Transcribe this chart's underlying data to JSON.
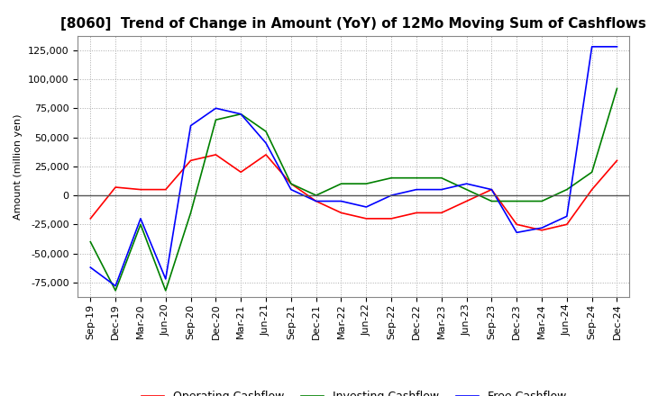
{
  "title": "[8060]  Trend of Change in Amount (YoY) of 12Mo Moving Sum of Cashflows",
  "ylabel": "Amount (million yen)",
  "ylim": [
    -87500,
    137500
  ],
  "yticks": [
    -75000,
    -50000,
    -25000,
    0,
    25000,
    50000,
    75000,
    100000,
    125000
  ],
  "background_color": "#ffffff",
  "grid_color": "#aaaaaa",
  "x_labels": [
    "Sep-19",
    "Dec-19",
    "Mar-20",
    "Jun-20",
    "Sep-20",
    "Dec-20",
    "Mar-21",
    "Jun-21",
    "Sep-21",
    "Dec-21",
    "Mar-22",
    "Jun-22",
    "Sep-22",
    "Dec-22",
    "Mar-23",
    "Jun-23",
    "Sep-23",
    "Dec-23",
    "Mar-24",
    "Jun-24",
    "Sep-24",
    "Dec-24"
  ],
  "operating": [
    -20000,
    7000,
    5000,
    5000,
    30000,
    35000,
    20000,
    35000,
    10000,
    -5000,
    -15000,
    -20000,
    -20000,
    -15000,
    -15000,
    -5000,
    5000,
    -25000,
    -30000,
    -25000,
    5000,
    30000
  ],
  "investing": [
    -40000,
    -82000,
    -25000,
    -82000,
    -15000,
    65000,
    70000,
    55000,
    10000,
    0,
    10000,
    10000,
    15000,
    15000,
    15000,
    5000,
    -5000,
    -5000,
    -5000,
    5000,
    20000,
    92000
  ],
  "free": [
    -62000,
    -78000,
    -20000,
    -72000,
    60000,
    75000,
    70000,
    45000,
    5000,
    -5000,
    -5000,
    -10000,
    0,
    5000,
    5000,
    10000,
    5000,
    -32000,
    -28000,
    -18000,
    128000,
    128000
  ],
  "op_color": "#ff0000",
  "inv_color": "#008000",
  "free_color": "#0000ff",
  "title_fontsize": 11,
  "tick_fontsize": 8,
  "ylabel_fontsize": 8,
  "legend_labels": [
    "Operating Cashflow",
    "Investing Cashflow",
    "Free Cashflow"
  ],
  "legend_fontsize": 9
}
